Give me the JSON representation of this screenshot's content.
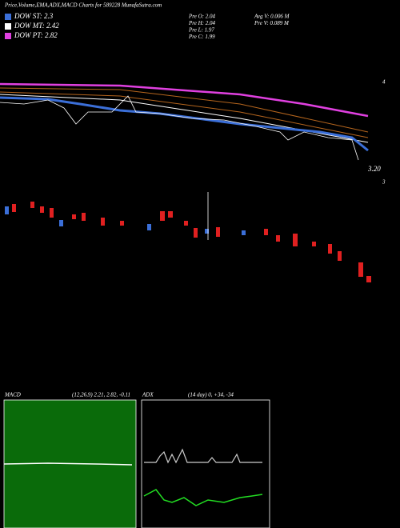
{
  "header": {
    "title": "Price,Volume,EMA,ADX,MACD Charts for 589228 MunafaSutra.com"
  },
  "legend": [
    {
      "label": "DOW ST: 2.3",
      "color": "#3b6fd8"
    },
    {
      "label": "DOW MT: 2.42",
      "color": "#ffffff"
    },
    {
      "label": "DOW PT: 2.82",
      "color": "#e040e0"
    }
  ],
  "stats": [
    "Pre  O: 2.04",
    "Pre  H: 2.04",
    "Pre  L: 1.97",
    "Pre  C: 1.99",
    "Avg V: 0.006  M",
    "Pre  V: 0.089  M"
  ],
  "price_labels": {
    "last": "3.20",
    "upper": "4",
    "lower": "3"
  },
  "macd": {
    "title": "MACD",
    "params": "(12,26,9) 2.21, 2.82, -0.11"
  },
  "adx": {
    "title": "ADX",
    "params": "(14  day) 0, +34, -34"
  }
}
